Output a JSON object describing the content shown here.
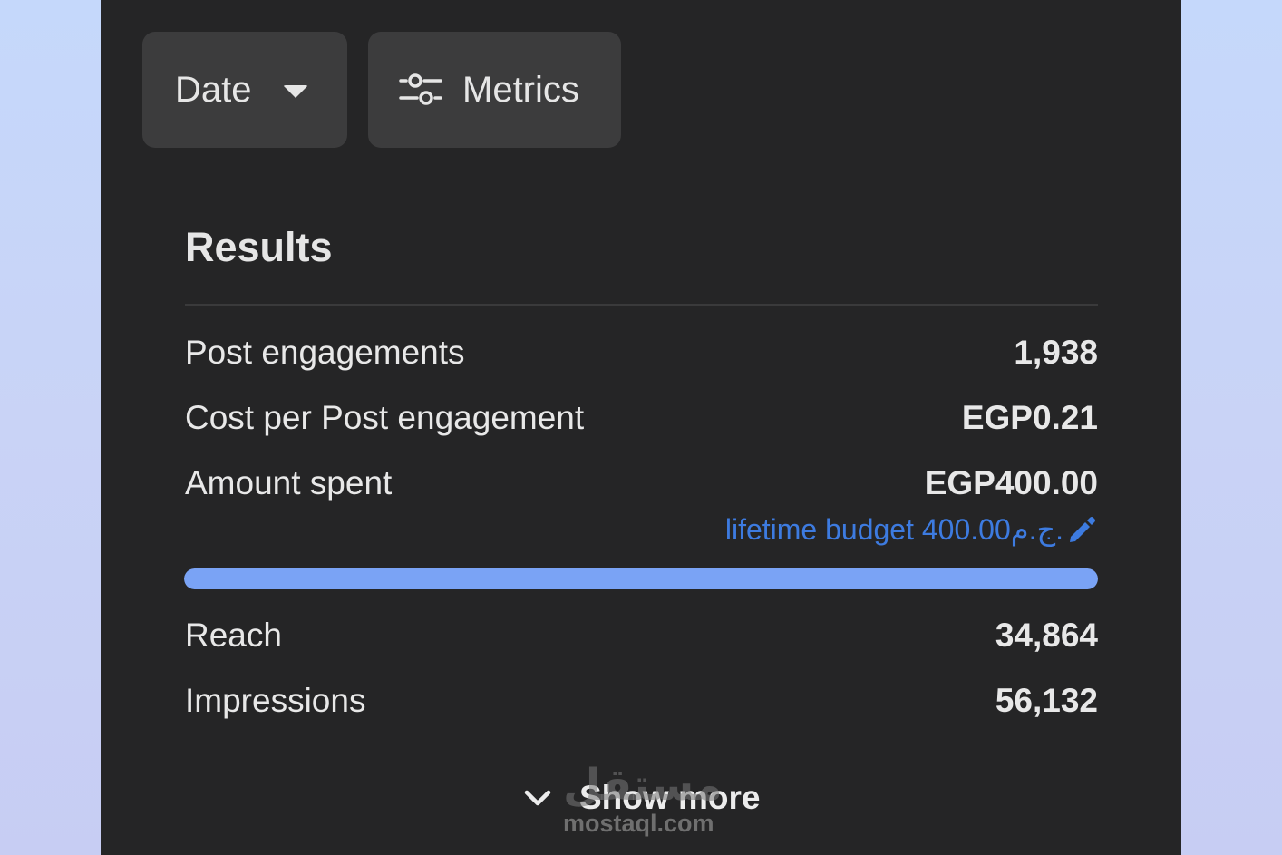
{
  "toolbar": {
    "date_label": "Date",
    "metrics_label": "Metrics"
  },
  "results": {
    "title": "Results",
    "rows_top": [
      {
        "label": "Post engagements",
        "value": "1,938"
      },
      {
        "label": "Cost per Post engagement",
        "value": "EGP0.21"
      },
      {
        "label": "Amount spent",
        "value": "EGP400.00"
      }
    ],
    "budget_text": "lifetime budget 400.00ج.م.",
    "budget_progress": 1.0,
    "rows_bottom": [
      {
        "label": "Reach",
        "value": "34,864"
      },
      {
        "label": "Impressions",
        "value": "56,132"
      }
    ],
    "show_more_label": "Show more"
  },
  "watermark": {
    "arabic": "مستقل",
    "domain": "mostaql.com"
  },
  "colors": {
    "panel_bg": "#252526",
    "button_bg": "#3c3c3d",
    "accent_link": "#3d7be0",
    "progress_fill": "#7aa3f5"
  },
  "icons": {
    "date_caret": "caret-down-icon",
    "metrics": "sliders-icon",
    "budget_edit": "pencil-icon",
    "show_more": "chevron-down-icon"
  }
}
